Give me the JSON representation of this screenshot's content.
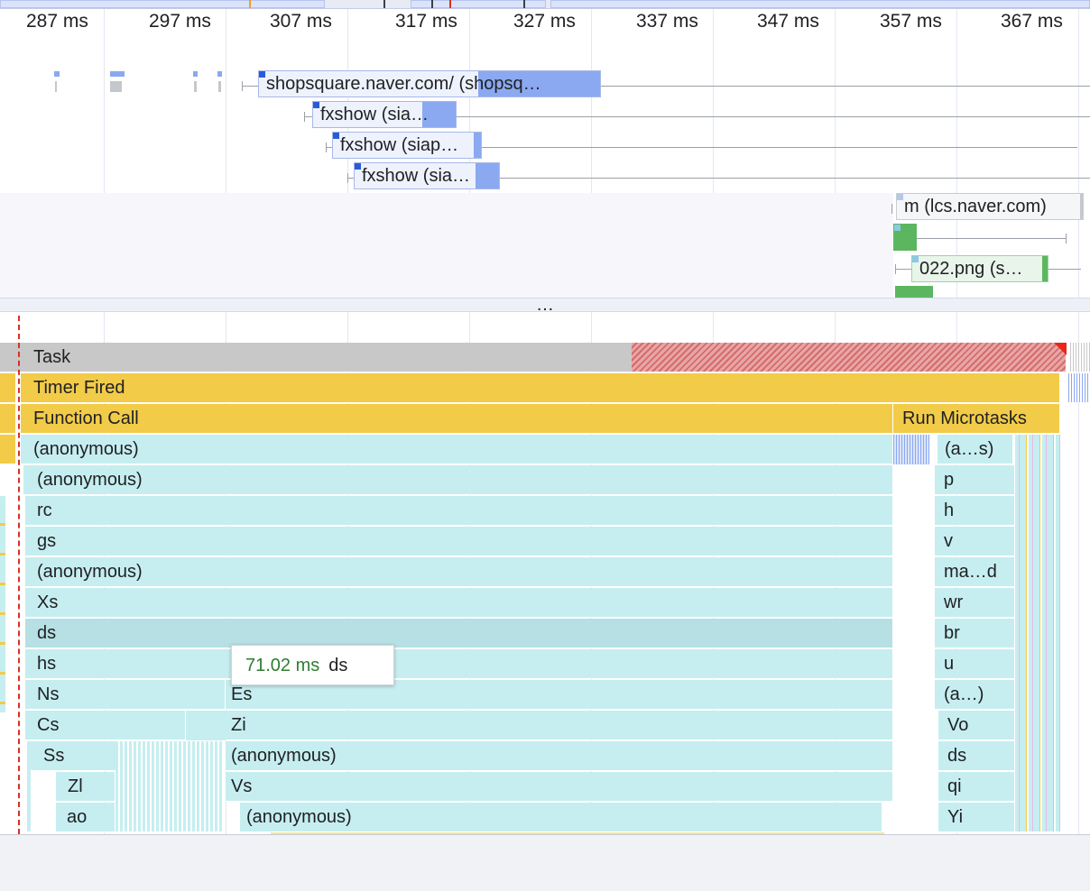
{
  "ruler": {
    "ticks": [
      "287 ms",
      "297 ms",
      "307 ms",
      "317 ms",
      "327 ms",
      "337 ms",
      "347 ms",
      "357 ms",
      "367 ms"
    ]
  },
  "network": {
    "requests": [
      {
        "label": "shopsquare.naver.com/ (shopsq…"
      },
      {
        "label": "fxshow (sia…"
      },
      {
        "label": "fxshow (siap…"
      },
      {
        "label": "fxshow (sia…"
      },
      {
        "label": "m (lcs.naver.com)"
      },
      {
        "label": ""
      },
      {
        "label": "022.png (s…"
      }
    ],
    "collapse_label": "…"
  },
  "flame": {
    "task": "Task",
    "timer_fired": "Timer Fired",
    "function_call": "Function Call",
    "run_microtasks": "Run Microtasks",
    "main_stack": [
      "(anonymous)",
      "(anonymous)",
      "rc",
      "gs",
      "(anonymous)",
      "Xs",
      "ds",
      "hs",
      "Ns",
      "Cs",
      "Ss",
      "Zl",
      "ao"
    ],
    "right_stack": [
      "(a…s)",
      "p",
      "h",
      "v",
      "ma…d",
      "wr",
      "br",
      "u",
      "(a…)",
      "Vo",
      "ds",
      "qi",
      "Yi"
    ],
    "mid_stack": [
      "Es",
      "Zi",
      "(anonymous)",
      "Vs",
      "(anonymous)"
    ]
  },
  "tooltip": {
    "duration": "71.02 ms",
    "name": "ds"
  },
  "colors": {
    "script": "#c6eef0",
    "task": "#c8c8c8",
    "timer": "#f2cb48",
    "network_bar": "#8aa9f0",
    "long_task": "#d46c6c"
  }
}
